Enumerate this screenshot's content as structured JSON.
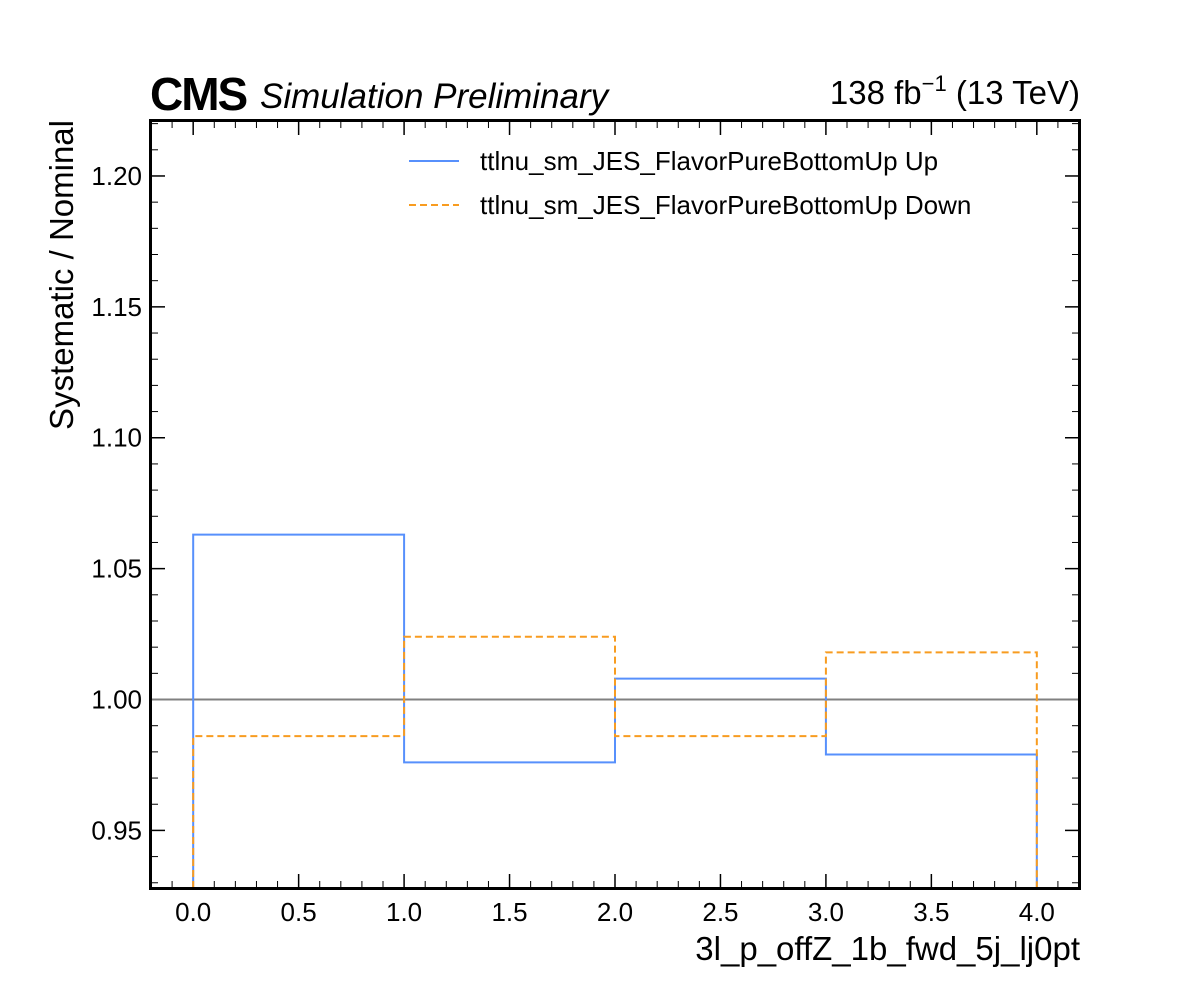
{
  "header": {
    "experiment": "CMS",
    "status": "Simulation Preliminary",
    "lumi_value": "138 fb",
    "lumi_exponent": "−1",
    "energy": " (13 TeV)"
  },
  "chart_data": {
    "type": "line",
    "xlabel": "3l_p_offZ_1b_fwd_5j_lj0pt",
    "ylabel": "Systematic / Nominal",
    "xlim": [
      -0.2,
      4.2
    ],
    "ylim": [
      0.928,
      1.221
    ],
    "bin_edges": [
      0,
      1,
      2,
      3,
      4
    ],
    "x_ticks": [
      {
        "value": 0.0,
        "label": "0.0"
      },
      {
        "value": 0.5,
        "label": "0.5"
      },
      {
        "value": 1.0,
        "label": "1.0"
      },
      {
        "value": 1.5,
        "label": "1.5"
      },
      {
        "value": 2.0,
        "label": "2.0"
      },
      {
        "value": 2.5,
        "label": "2.5"
      },
      {
        "value": 3.0,
        "label": "3.0"
      },
      {
        "value": 3.5,
        "label": "3.5"
      },
      {
        "value": 4.0,
        "label": "4.0"
      }
    ],
    "y_ticks": [
      {
        "value": 0.95,
        "label": "0.95"
      },
      {
        "value": 1.0,
        "label": "1.00"
      },
      {
        "value": 1.05,
        "label": "1.05"
      },
      {
        "value": 1.1,
        "label": "1.10"
      },
      {
        "value": 1.15,
        "label": "1.15"
      },
      {
        "value": 1.2,
        "label": "1.20"
      }
    ],
    "reference_line": {
      "y": 1.0,
      "color": "#808080"
    },
    "series": [
      {
        "name": "ttlnu_sm_JES_FlavorPureBottomUp Up",
        "color": "#5790fc",
        "style": "solid",
        "values": [
          1.063,
          0.976,
          1.008,
          0.979
        ]
      },
      {
        "name": "ttlnu_sm_JES_FlavorPureBottomUp Down",
        "color": "#f89c20",
        "style": "dashed",
        "values": [
          0.986,
          1.024,
          0.986,
          1.018
        ]
      }
    ],
    "legend_position": "top-right",
    "grid": false
  }
}
